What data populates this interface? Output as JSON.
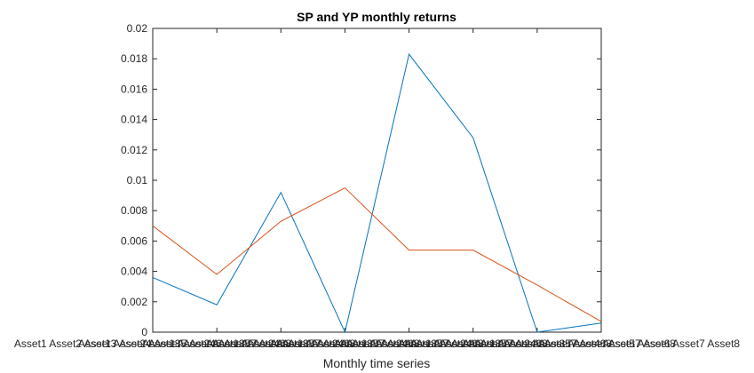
{
  "chart_data": {
    "type": "line",
    "title": "SP and YP monthly returns",
    "xlabel": "Monthly time series",
    "ylabel": "",
    "categories": [
      "Asset1 Asset2 Asset3 Asset4 Asset5 Asset6 Asset7 Asset8",
      "Asset1 Asset2 Asset3 Asset4 Asset5 Asset6 Asset7 Asset8",
      "Asset1 Asset2 Asset3 Asset4 Asset5 Asset6 Asset7 Asset8",
      "Asset1 Asset2 Asset3 Asset4 Asset5 Asset6 Asset7 Asset8",
      "Asset1 Asset2 Asset3 Asset4 Asset5 Asset6 Asset7 Asset8",
      "Asset1 Asset2 Asset3 Asset4 Asset5 Asset6 Asset7 Asset8",
      "Asset1 Asset2 Asset3 Asset4 Asset5 Asset6 Asset7 Asset8",
      "Asset1 Asset2 Asset3 Asset4 Asset5 Asset6 Asset7 Asset8"
    ],
    "ylim": [
      0,
      0.02
    ],
    "yticks": [
      "0",
      "0.002",
      "0.004",
      "0.006",
      "0.008",
      "0.01",
      "0.012",
      "0.014",
      "0.016",
      "0.018",
      "0.02"
    ],
    "grid": false,
    "legend": "none",
    "series": [
      {
        "color": "#0072BD",
        "values": [
          0.0036,
          0.0018,
          0.0092,
          0.0,
          0.0183,
          0.0128,
          0.0,
          0.0006
        ]
      },
      {
        "color": "#D95319",
        "values": [
          0.007,
          0.0038,
          0.0073,
          0.0095,
          0.0054,
          0.0054,
          0.0031,
          0.0007
        ]
      }
    ]
  }
}
